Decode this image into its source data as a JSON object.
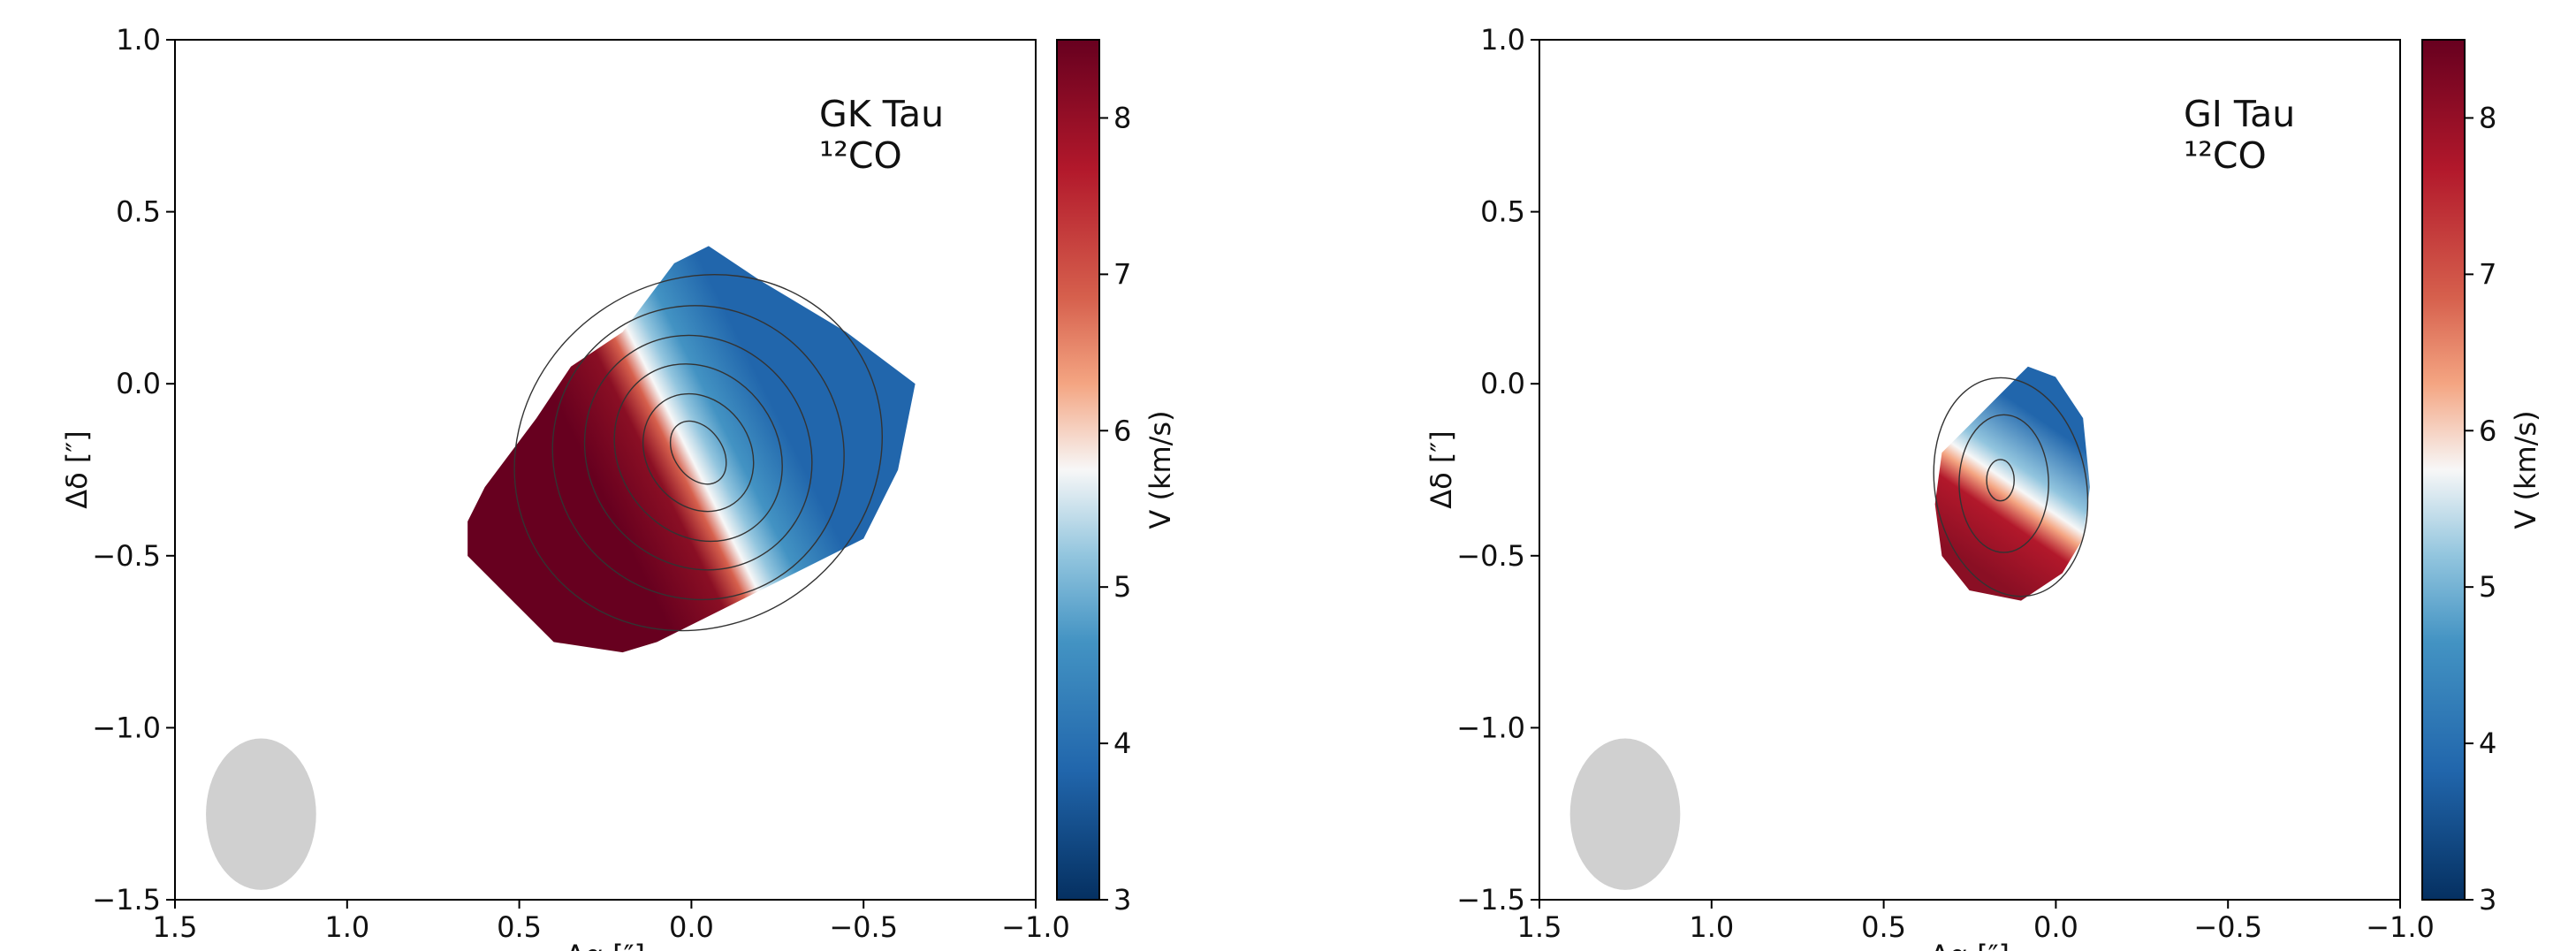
{
  "chart_data": [
    {
      "type": "velocity-map",
      "annotation": "GK Tau",
      "tracer": "¹²CO",
      "xlabel": "Δα  [″]",
      "ylabel": "Δδ  [″]",
      "xlim": [
        1.5,
        -1.0
      ],
      "ylim": [
        -1.5,
        1.0
      ],
      "xticks": [
        {
          "value": 1.5,
          "label": "1.5"
        },
        {
          "value": 1.0,
          "label": "1.0"
        },
        {
          "value": 0.5,
          "label": "0.5"
        },
        {
          "value": 0.0,
          "label": "0.0"
        },
        {
          "value": -0.5,
          "label": "−0.5"
        },
        {
          "value": -1.0,
          "label": "−1.0"
        }
      ],
      "yticks": [
        {
          "value": -1.5,
          "label": "−1.5"
        },
        {
          "value": -1.0,
          "label": "−1.0"
        },
        {
          "value": -0.5,
          "label": "−0.5"
        },
        {
          "value": 0.0,
          "label": "0.0"
        },
        {
          "value": 0.5,
          "label": "0.5"
        },
        {
          "value": 1.0,
          "label": "1.0"
        }
      ],
      "colorbar": {
        "label": "V (km/s)",
        "lim": [
          3,
          8.5
        ],
        "ticks": [
          3,
          4,
          5,
          6,
          7,
          8
        ]
      }
    },
    {
      "type": "velocity-map",
      "annotation": "GI Tau",
      "tracer": "¹²CO",
      "xlabel": "Δα  [″]",
      "ylabel": "Δδ  [″]",
      "xlim": [
        1.5,
        -1.0
      ],
      "ylim": [
        -1.5,
        1.0
      ],
      "xticks": [
        {
          "value": 1.5,
          "label": "1.5"
        },
        {
          "value": 1.0,
          "label": "1.0"
        },
        {
          "value": 0.5,
          "label": "0.5"
        },
        {
          "value": 0.0,
          "label": "0.0"
        },
        {
          "value": -0.5,
          "label": "−0.5"
        },
        {
          "value": -1.0,
          "label": "−1.0"
        }
      ],
      "yticks": [
        {
          "value": -1.5,
          "label": "−1.5"
        },
        {
          "value": -1.0,
          "label": "−1.0"
        },
        {
          "value": -0.5,
          "label": "−0.5"
        },
        {
          "value": 0.0,
          "label": "0.0"
        },
        {
          "value": 0.5,
          "label": "0.5"
        },
        {
          "value": 1.0,
          "label": "1.0"
        }
      ],
      "colorbar": {
        "label": "V (km/s)",
        "lim": [
          3,
          8.5
        ],
        "ticks": [
          3,
          4,
          5,
          6,
          7,
          8
        ]
      }
    }
  ]
}
